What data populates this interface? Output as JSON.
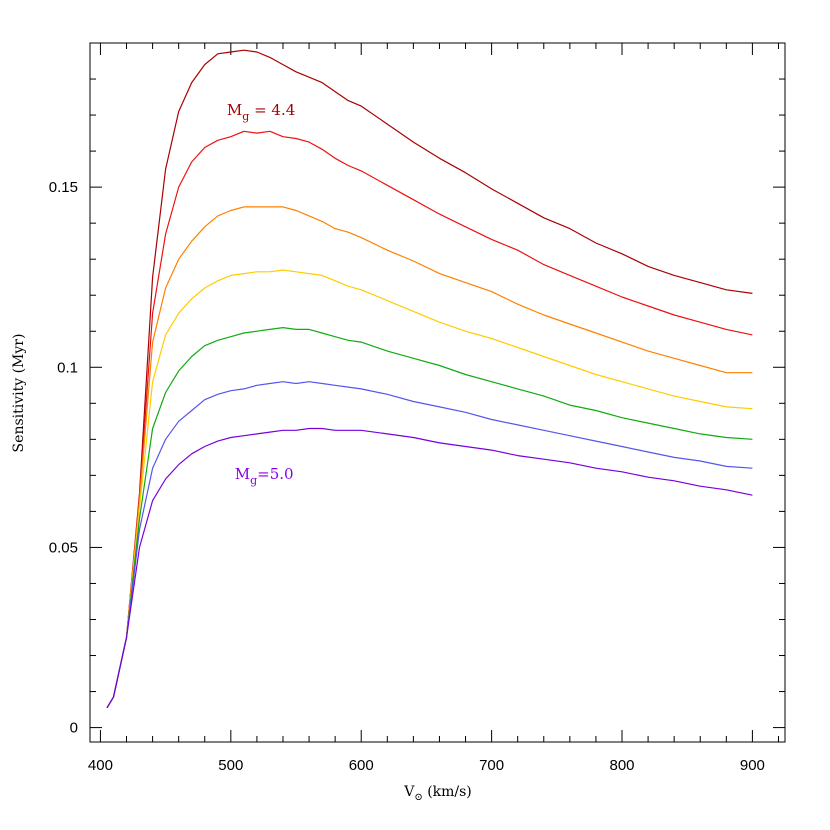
{
  "chart_data": {
    "type": "line",
    "xlabel": "V",
    "xlabel_subscript": "⊙",
    "xlabel_unit": "(km/s)",
    "ylabel": "Sensitivity (Myr)",
    "xlim": [
      392,
      925
    ],
    "ylim": [
      -0.004,
      0.19
    ],
    "x_ticks": [
      400,
      500,
      600,
      700,
      800,
      900
    ],
    "x_minor_step": 20,
    "y_ticks": [
      0,
      0.05,
      0.1,
      0.15
    ],
    "y_tick_labels": [
      "0",
      "0.05",
      "0.1",
      "0.15"
    ],
    "y_minor_step": 0.01,
    "grid": false,
    "annotations": [
      {
        "main": "M",
        "sub": "g",
        "rest": " = 4.4",
        "x": 497,
        "y": 0.17,
        "color": "#aa0000"
      },
      {
        "main": "M",
        "sub": "g",
        "rest": "=5.0",
        "x": 503,
        "y": 0.069,
        "color": "#8800ee"
      }
    ],
    "x": [
      405,
      410,
      420,
      430,
      440,
      450,
      460,
      470,
      480,
      490,
      500,
      510,
      520,
      530,
      540,
      550,
      560,
      570,
      580,
      590,
      600,
      620,
      640,
      660,
      680,
      700,
      720,
      740,
      760,
      780,
      800,
      820,
      840,
      860,
      880,
      900
    ],
    "series": [
      {
        "color": "#aa0000",
        "values": [
          0.0055,
          0.0085,
          0.025,
          0.065,
          0.125,
          0.155,
          0.171,
          0.179,
          0.184,
          0.187,
          0.1875,
          0.188,
          0.1875,
          0.186,
          0.184,
          0.182,
          0.1805,
          0.179,
          0.1765,
          0.174,
          0.1725,
          0.1675,
          0.1625,
          0.158,
          0.154,
          0.1495,
          0.1455,
          0.1415,
          0.1385,
          0.1345,
          0.1315,
          0.128,
          0.1255,
          0.1235,
          0.1215,
          0.1205
        ]
      },
      {
        "color": "#ee1111",
        "values": [
          0.0055,
          0.0085,
          0.025,
          0.064,
          0.115,
          0.137,
          0.15,
          0.157,
          0.161,
          0.163,
          0.164,
          0.1655,
          0.165,
          0.1655,
          0.164,
          0.1635,
          0.1625,
          0.1605,
          0.158,
          0.156,
          0.1545,
          0.1505,
          0.1465,
          0.1425,
          0.139,
          0.1355,
          0.1325,
          0.1285,
          0.1255,
          0.1225,
          0.1195,
          0.117,
          0.1145,
          0.1125,
          0.1105,
          0.109
        ]
      },
      {
        "color": "#ff8000",
        "values": [
          0.0055,
          0.0085,
          0.025,
          0.063,
          0.107,
          0.122,
          0.13,
          0.135,
          0.139,
          0.142,
          0.1435,
          0.1445,
          0.1445,
          0.1445,
          0.1445,
          0.1435,
          0.142,
          0.1405,
          0.1385,
          0.1375,
          0.136,
          0.1325,
          0.1295,
          0.126,
          0.1235,
          0.121,
          0.1175,
          0.1145,
          0.112,
          0.1095,
          0.107,
          0.1045,
          0.1025,
          0.1005,
          0.0985,
          0.0985
        ]
      },
      {
        "color": "#ffcc00",
        "values": [
          0.0055,
          0.0085,
          0.025,
          0.061,
          0.096,
          0.109,
          0.115,
          0.119,
          0.122,
          0.124,
          0.1255,
          0.126,
          0.1265,
          0.1265,
          0.127,
          0.1265,
          0.126,
          0.1255,
          0.124,
          0.1225,
          0.1215,
          0.1185,
          0.1155,
          0.1125,
          0.11,
          0.108,
          0.1055,
          0.103,
          0.1005,
          0.098,
          0.096,
          0.094,
          0.092,
          0.0905,
          0.089,
          0.0885
        ]
      },
      {
        "color": "#11aa11",
        "values": [
          0.0055,
          0.0085,
          0.025,
          0.058,
          0.083,
          0.093,
          0.099,
          0.103,
          0.106,
          0.1075,
          0.1085,
          0.1095,
          0.11,
          0.1105,
          0.111,
          0.1105,
          0.1105,
          0.1095,
          0.1085,
          0.1075,
          0.107,
          0.1045,
          0.1025,
          0.1005,
          0.098,
          0.096,
          0.094,
          0.092,
          0.0895,
          0.088,
          0.086,
          0.0845,
          0.083,
          0.0815,
          0.0805,
          0.08
        ]
      },
      {
        "color": "#5555ee",
        "values": [
          0.0055,
          0.0085,
          0.025,
          0.055,
          0.072,
          0.08,
          0.085,
          0.088,
          0.091,
          0.0925,
          0.0935,
          0.094,
          0.095,
          0.0955,
          0.096,
          0.0955,
          0.096,
          0.0955,
          0.095,
          0.0945,
          0.094,
          0.0925,
          0.0905,
          0.089,
          0.0875,
          0.0855,
          0.084,
          0.0825,
          0.081,
          0.0795,
          0.078,
          0.0765,
          0.075,
          0.074,
          0.0725,
          0.072
        ]
      },
      {
        "color": "#7700dd",
        "values": [
          0.0055,
          0.0085,
          0.025,
          0.05,
          0.063,
          0.069,
          0.073,
          0.076,
          0.078,
          0.0795,
          0.0805,
          0.081,
          0.0815,
          0.082,
          0.0825,
          0.0825,
          0.083,
          0.083,
          0.0825,
          0.0825,
          0.0825,
          0.0815,
          0.0805,
          0.079,
          0.078,
          0.077,
          0.0755,
          0.0745,
          0.0735,
          0.072,
          0.071,
          0.0695,
          0.0685,
          0.067,
          0.066,
          0.0645
        ]
      }
    ]
  }
}
